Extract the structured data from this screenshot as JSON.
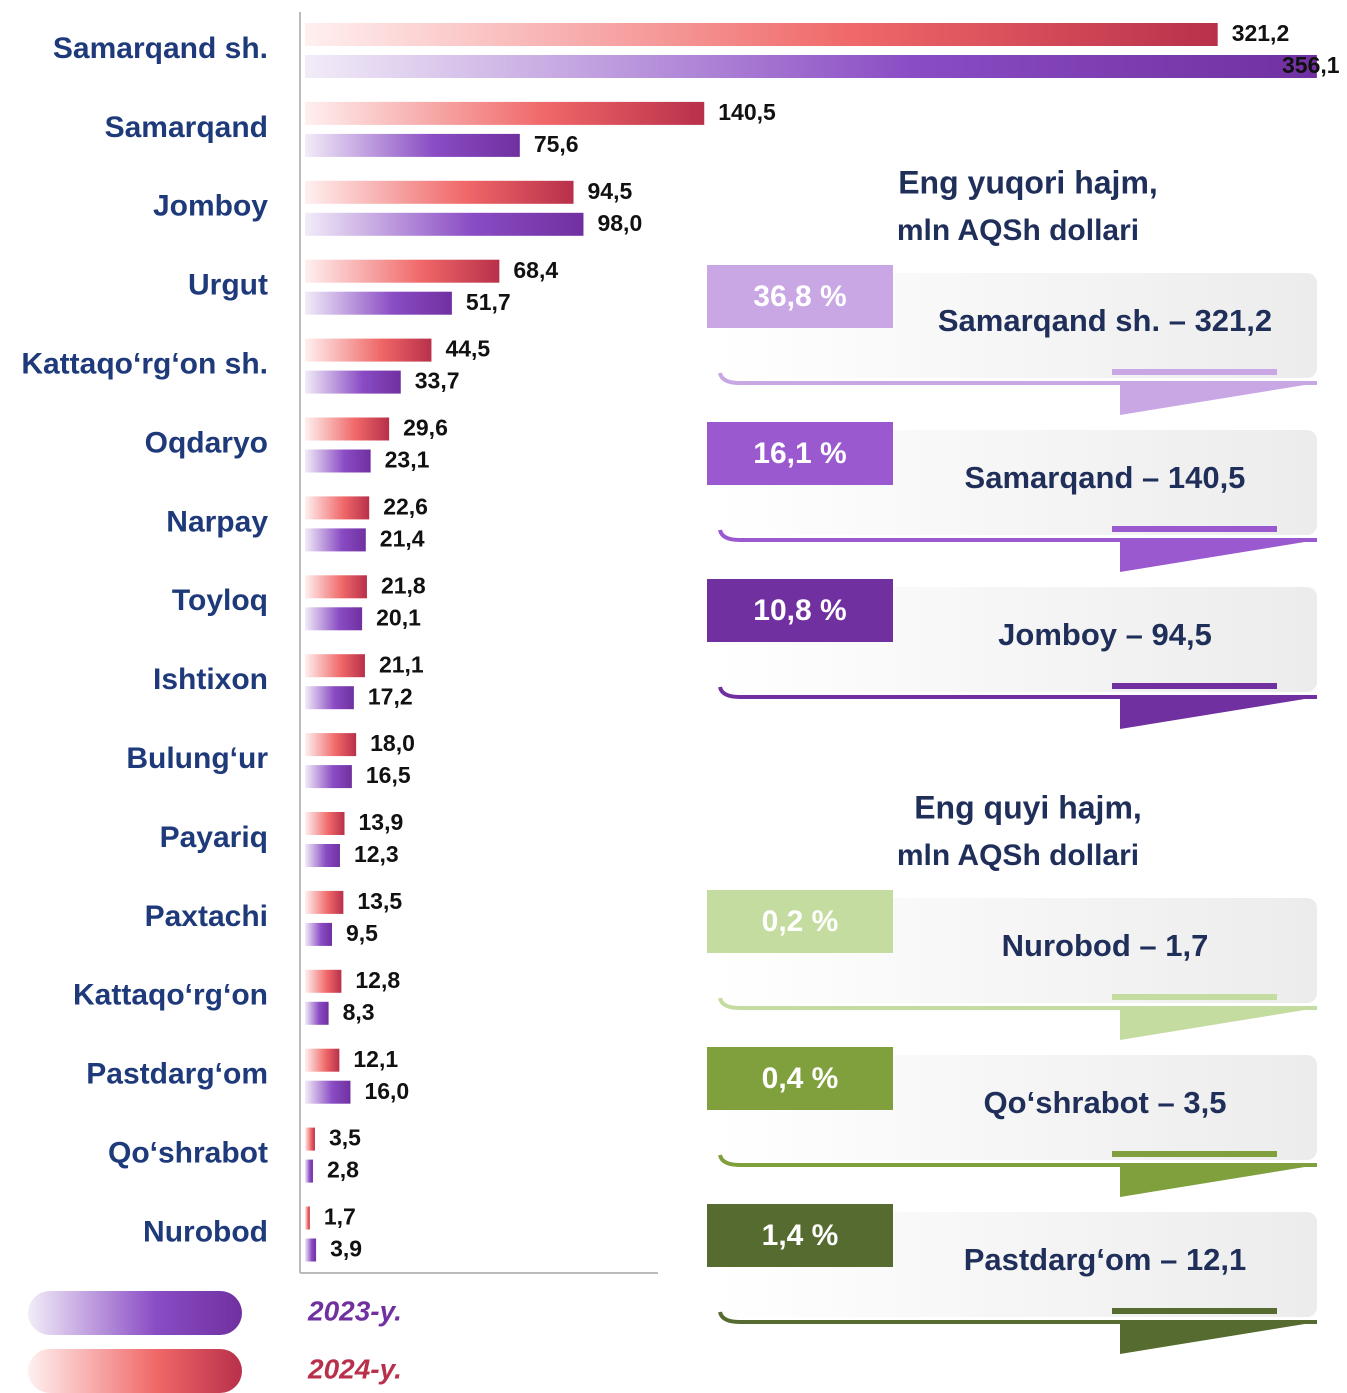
{
  "chart_data": {
    "type": "hbar",
    "categories": [
      "Samarqand sh.",
      "Samarqand",
      "Jomboy",
      "Urgut",
      "Kattaqo‘rg‘on sh.",
      "Oqdaryo",
      "Narpay",
      "Toyloq",
      "Ishtixon",
      "Bulung‘ur",
      "Payariq",
      "Paxtachi",
      "Kattaqo‘rg‘on",
      "Pastdarg‘om",
      "Qo‘shrabot",
      "Nurobod"
    ],
    "series": [
      {
        "name": "2024-y.",
        "color": "#b8304a",
        "values": [
          321.2,
          140.5,
          94.5,
          68.4,
          44.5,
          29.6,
          22.6,
          21.8,
          21.1,
          18.0,
          13.9,
          13.5,
          12.8,
          12.1,
          3.5,
          1.7
        ],
        "value_labels": [
          "321,2",
          "140,5",
          "94,5",
          "68,4",
          "44,5",
          "29,6",
          "22,6",
          "21,8",
          "21,1",
          "18,0",
          "13,9",
          "13,5",
          "12,8",
          "12,1",
          "3,5",
          "1,7"
        ]
      },
      {
        "name": "2023-y.",
        "color": "#7030a0",
        "values": [
          356.1,
          75.6,
          98.0,
          51.7,
          33.7,
          23.1,
          21.4,
          20.1,
          17.2,
          16.5,
          12.3,
          9.5,
          8.3,
          16.0,
          2.8,
          3.9
        ],
        "value_labels": [
          "356,1",
          "75,6",
          "98,0",
          "51,7",
          "33,7",
          "23,1",
          "21,4",
          "20,1",
          "17,2",
          "16,5",
          "12,3",
          "9,5",
          "8,3",
          "16,0",
          "2,8",
          "3,9"
        ]
      }
    ],
    "xlim": [
      0,
      366
    ]
  },
  "panels": [
    {
      "title": "Eng yuqori hajm,",
      "subtitle": "mln AQSh dollari",
      "items": [
        {
          "percent": "36,8 %",
          "label": "Samarqand sh. – 321,2",
          "color": "#c9a6e4"
        },
        {
          "percent": "16,1 %",
          "label": "Samarqand – 140,5",
          "color": "#9b59d0"
        },
        {
          "percent": "10,8 %",
          "label": "Jomboy – 94,5",
          "color": "#7030a0"
        }
      ]
    },
    {
      "title": "Eng quyi hajm,",
      "subtitle": "mln AQSh dollari",
      "items": [
        {
          "percent": "0,2 %",
          "label": "Nurobod – 1,7",
          "color": "#c5dca0"
        },
        {
          "percent": "0,4 %",
          "label": "Qo‘shrabot – 3,5",
          "color": "#7fa03c"
        },
        {
          "percent": "1,4 %",
          "label": "Pastdarg‘om – 12,1",
          "color": "#556b2f"
        }
      ]
    }
  ]
}
